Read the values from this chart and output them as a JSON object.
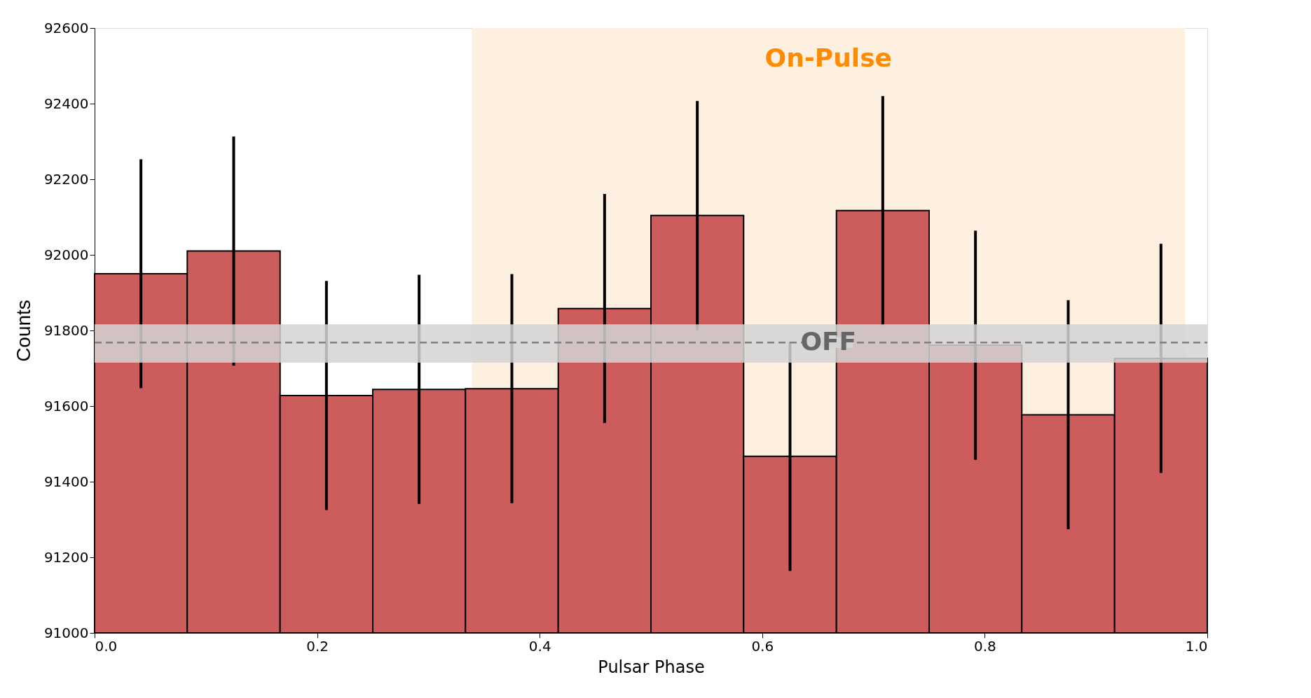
{
  "chart_data": {
    "type": "histogram",
    "xlabel": "Pulsar Phase",
    "ylabel": "Counts",
    "bins": [
      0,
      0.0833,
      0.1667,
      0.25,
      0.3333,
      0.4167,
      0.5,
      0.5833,
      0.6667,
      0.75,
      0.8333,
      0.9167,
      1.0
    ],
    "values": [
      91950,
      92010,
      91628,
      91644,
      91646,
      91858,
      92104,
      91467,
      92117,
      91761,
      91577,
      91726
    ],
    "errors": [
      303,
      303,
      303,
      303,
      303,
      303,
      303,
      303,
      303,
      303,
      303,
      303
    ],
    "color": "#cd5c5c",
    "xlim": [
      0,
      1.0
    ],
    "ylim": [
      91000,
      92600
    ],
    "xticks": [
      {
        "value": 0,
        "label": "0.0"
      },
      0.2,
      0.4,
      0.6,
      0.8,
      {
        "value": 1.0,
        "label": "1.0"
      }
    ],
    "yticks": [
      91000,
      91200,
      91400,
      91600,
      91800,
      92000,
      92200,
      92400,
      92600
    ],
    "bands": [
      {
        "axis": "x",
        "from": 0.339,
        "to": 0.98,
        "label": "On-Pulse",
        "color": "#fdf0e0"
      },
      {
        "axis": "y",
        "from": 91715,
        "to": 91816,
        "color": "#d3d3d3"
      }
    ],
    "ref_lines": [
      {
        "axis": "y",
        "value": 91768,
        "label": "OFF",
        "color": "#808080",
        "line_style": "dashed"
      }
    ],
    "grid": false
  }
}
